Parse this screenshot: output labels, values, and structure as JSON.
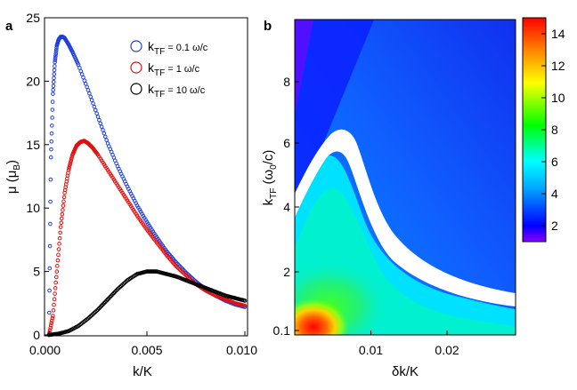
{
  "panels": [
    {
      "label": "a"
    },
    {
      "label": "b"
    }
  ],
  "chart_data": [
    {
      "type": "scatter",
      "panel": "a",
      "xlabel": "k/K",
      "ylabel_main": "μ (μ",
      "ylabel_sub": "B",
      "ylabel_close": ")",
      "xlim": [
        0.0,
        0.01
      ],
      "ylim": [
        0,
        25
      ],
      "xticks": [
        {
          "value": 0.0,
          "label": "0.000"
        },
        {
          "value": 0.005,
          "label": "0.005"
        },
        {
          "value": 0.01,
          "label": "0.010"
        }
      ],
      "yticks": [
        0,
        5,
        10,
        15,
        20,
        25
      ],
      "legend_position": "top-right",
      "series": [
        {
          "name": "k_TF = 0.1 ω/c",
          "legend_main": "k",
          "legend_sub": "TF",
          "legend_tail": " = 0.1 ω/c",
          "color": "#1f3fe0",
          "x": [
            0.0,
            0.0001,
            0.0002,
            0.0003,
            0.0004,
            0.0005,
            0.0006,
            0.0007,
            0.0008,
            0.001,
            0.0012,
            0.0015,
            0.002,
            0.0025,
            0.003,
            0.0035,
            0.004,
            0.0045,
            0.005,
            0.0055,
            0.006,
            0.0065,
            0.007,
            0.0075,
            0.008,
            0.0085,
            0.009,
            0.0095,
            0.01
          ],
          "y": [
            0.0,
            14.0,
            19.0,
            21.5,
            22.8,
            23.3,
            23.5,
            23.5,
            23.4,
            22.9,
            22.3,
            21.3,
            19.3,
            17.2,
            15.1,
            13.3,
            11.7,
            10.2,
            8.9,
            7.7,
            6.6,
            5.7,
            4.9,
            4.2,
            3.6,
            3.1,
            2.7,
            2.4,
            2.2
          ]
        },
        {
          "name": "k_TF = 1 ω/c",
          "legend_main": "k",
          "legend_sub": "TF",
          "legend_tail": " = 1 ω/c",
          "color": "#e01010",
          "x": [
            0.0,
            0.0002,
            0.0004,
            0.0006,
            0.0008,
            0.001,
            0.0012,
            0.0014,
            0.0016,
            0.0018,
            0.002,
            0.0022,
            0.0025,
            0.003,
            0.0035,
            0.004,
            0.0045,
            0.005,
            0.0055,
            0.006,
            0.0065,
            0.007,
            0.0075,
            0.008,
            0.0085,
            0.009,
            0.0095,
            0.01
          ],
          "y": [
            0.0,
            1.5,
            5.0,
            8.5,
            11.2,
            13.0,
            14.2,
            14.9,
            15.2,
            15.3,
            15.1,
            14.8,
            14.2,
            13.0,
            11.8,
            10.6,
            9.4,
            8.3,
            7.3,
            6.3,
            5.4,
            4.7,
            4.0,
            3.5,
            3.1,
            2.8,
            2.5,
            2.3
          ]
        },
        {
          "name": "k_TF = 10 ω/c",
          "legend_main": "k",
          "legend_sub": "TF",
          "legend_tail": " = 10 ω/c",
          "color": "#000000",
          "x": [
            0.0,
            0.0005,
            0.001,
            0.0015,
            0.002,
            0.0025,
            0.003,
            0.0035,
            0.004,
            0.0045,
            0.005,
            0.0055,
            0.006,
            0.0065,
            0.007,
            0.0075,
            0.008,
            0.0085,
            0.009,
            0.0095,
            0.01
          ],
          "y": [
            0.0,
            0.1,
            0.3,
            0.7,
            1.3,
            2.0,
            2.8,
            3.6,
            4.3,
            4.8,
            5.0,
            5.0,
            4.8,
            4.6,
            4.3,
            4.0,
            3.7,
            3.4,
            3.1,
            2.9,
            2.7
          ]
        }
      ]
    },
    {
      "type": "heatmap",
      "panel": "b",
      "xlabel": "δk/K",
      "ylabel_main": "k",
      "ylabel_sub": "TF",
      "ylabel_mid": " (ω",
      "ylabel_sub2": "0",
      "ylabel_close": "/c)",
      "xlim": [
        0.0,
        0.029
      ],
      "ylim_label": [
        0.1,
        8
      ],
      "xticks": [
        {
          "value": 0.01,
          "label": "0.01"
        },
        {
          "value": 0.02,
          "label": "0.02"
        }
      ],
      "yticks": [
        "0.1",
        "2",
        "4",
        "6",
        "8"
      ],
      "colorbar": {
        "min": 1.0,
        "max": 15.0,
        "ticks": [
          2,
          4,
          6,
          8,
          10,
          12,
          14
        ],
        "colors": [
          "#8a00ff",
          "#0000ff",
          "#00b0ff",
          "#00ffff",
          "#00ff00",
          "#ffff00",
          "#ff8000",
          "#ff0000"
        ]
      }
    }
  ]
}
